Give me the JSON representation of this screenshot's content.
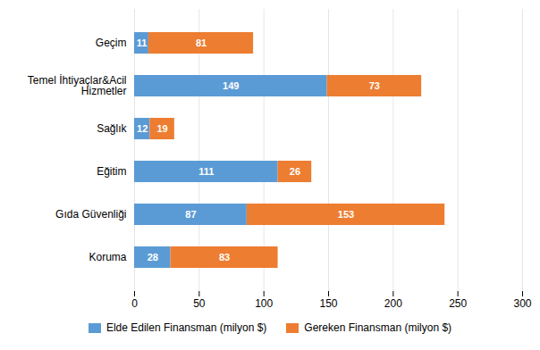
{
  "chart_data": {
    "type": "bar",
    "orientation": "horizontal",
    "stacked": true,
    "categories": [
      "Geçim",
      "Temel İhtiyaçlar&Acil\nHizmetler",
      "Sağlık",
      "Eğitim",
      "Gıda Güvenliği",
      "Koruma"
    ],
    "series": [
      {
        "name": "Elde Edilen Finansman (milyon $)",
        "color": "#5B9BD5",
        "values": [
          11,
          149,
          12,
          111,
          87,
          28
        ]
      },
      {
        "name": "Gereken Finansman (milyon $)",
        "color": "#ED7D31",
        "values": [
          81,
          73,
          19,
          26,
          153,
          83
        ]
      }
    ],
    "xlim": [
      0,
      300
    ],
    "xticks": [
      0,
      50,
      100,
      150,
      200,
      250,
      300
    ],
    "grid": true,
    "data_labels": true,
    "legend": "bottom"
  }
}
